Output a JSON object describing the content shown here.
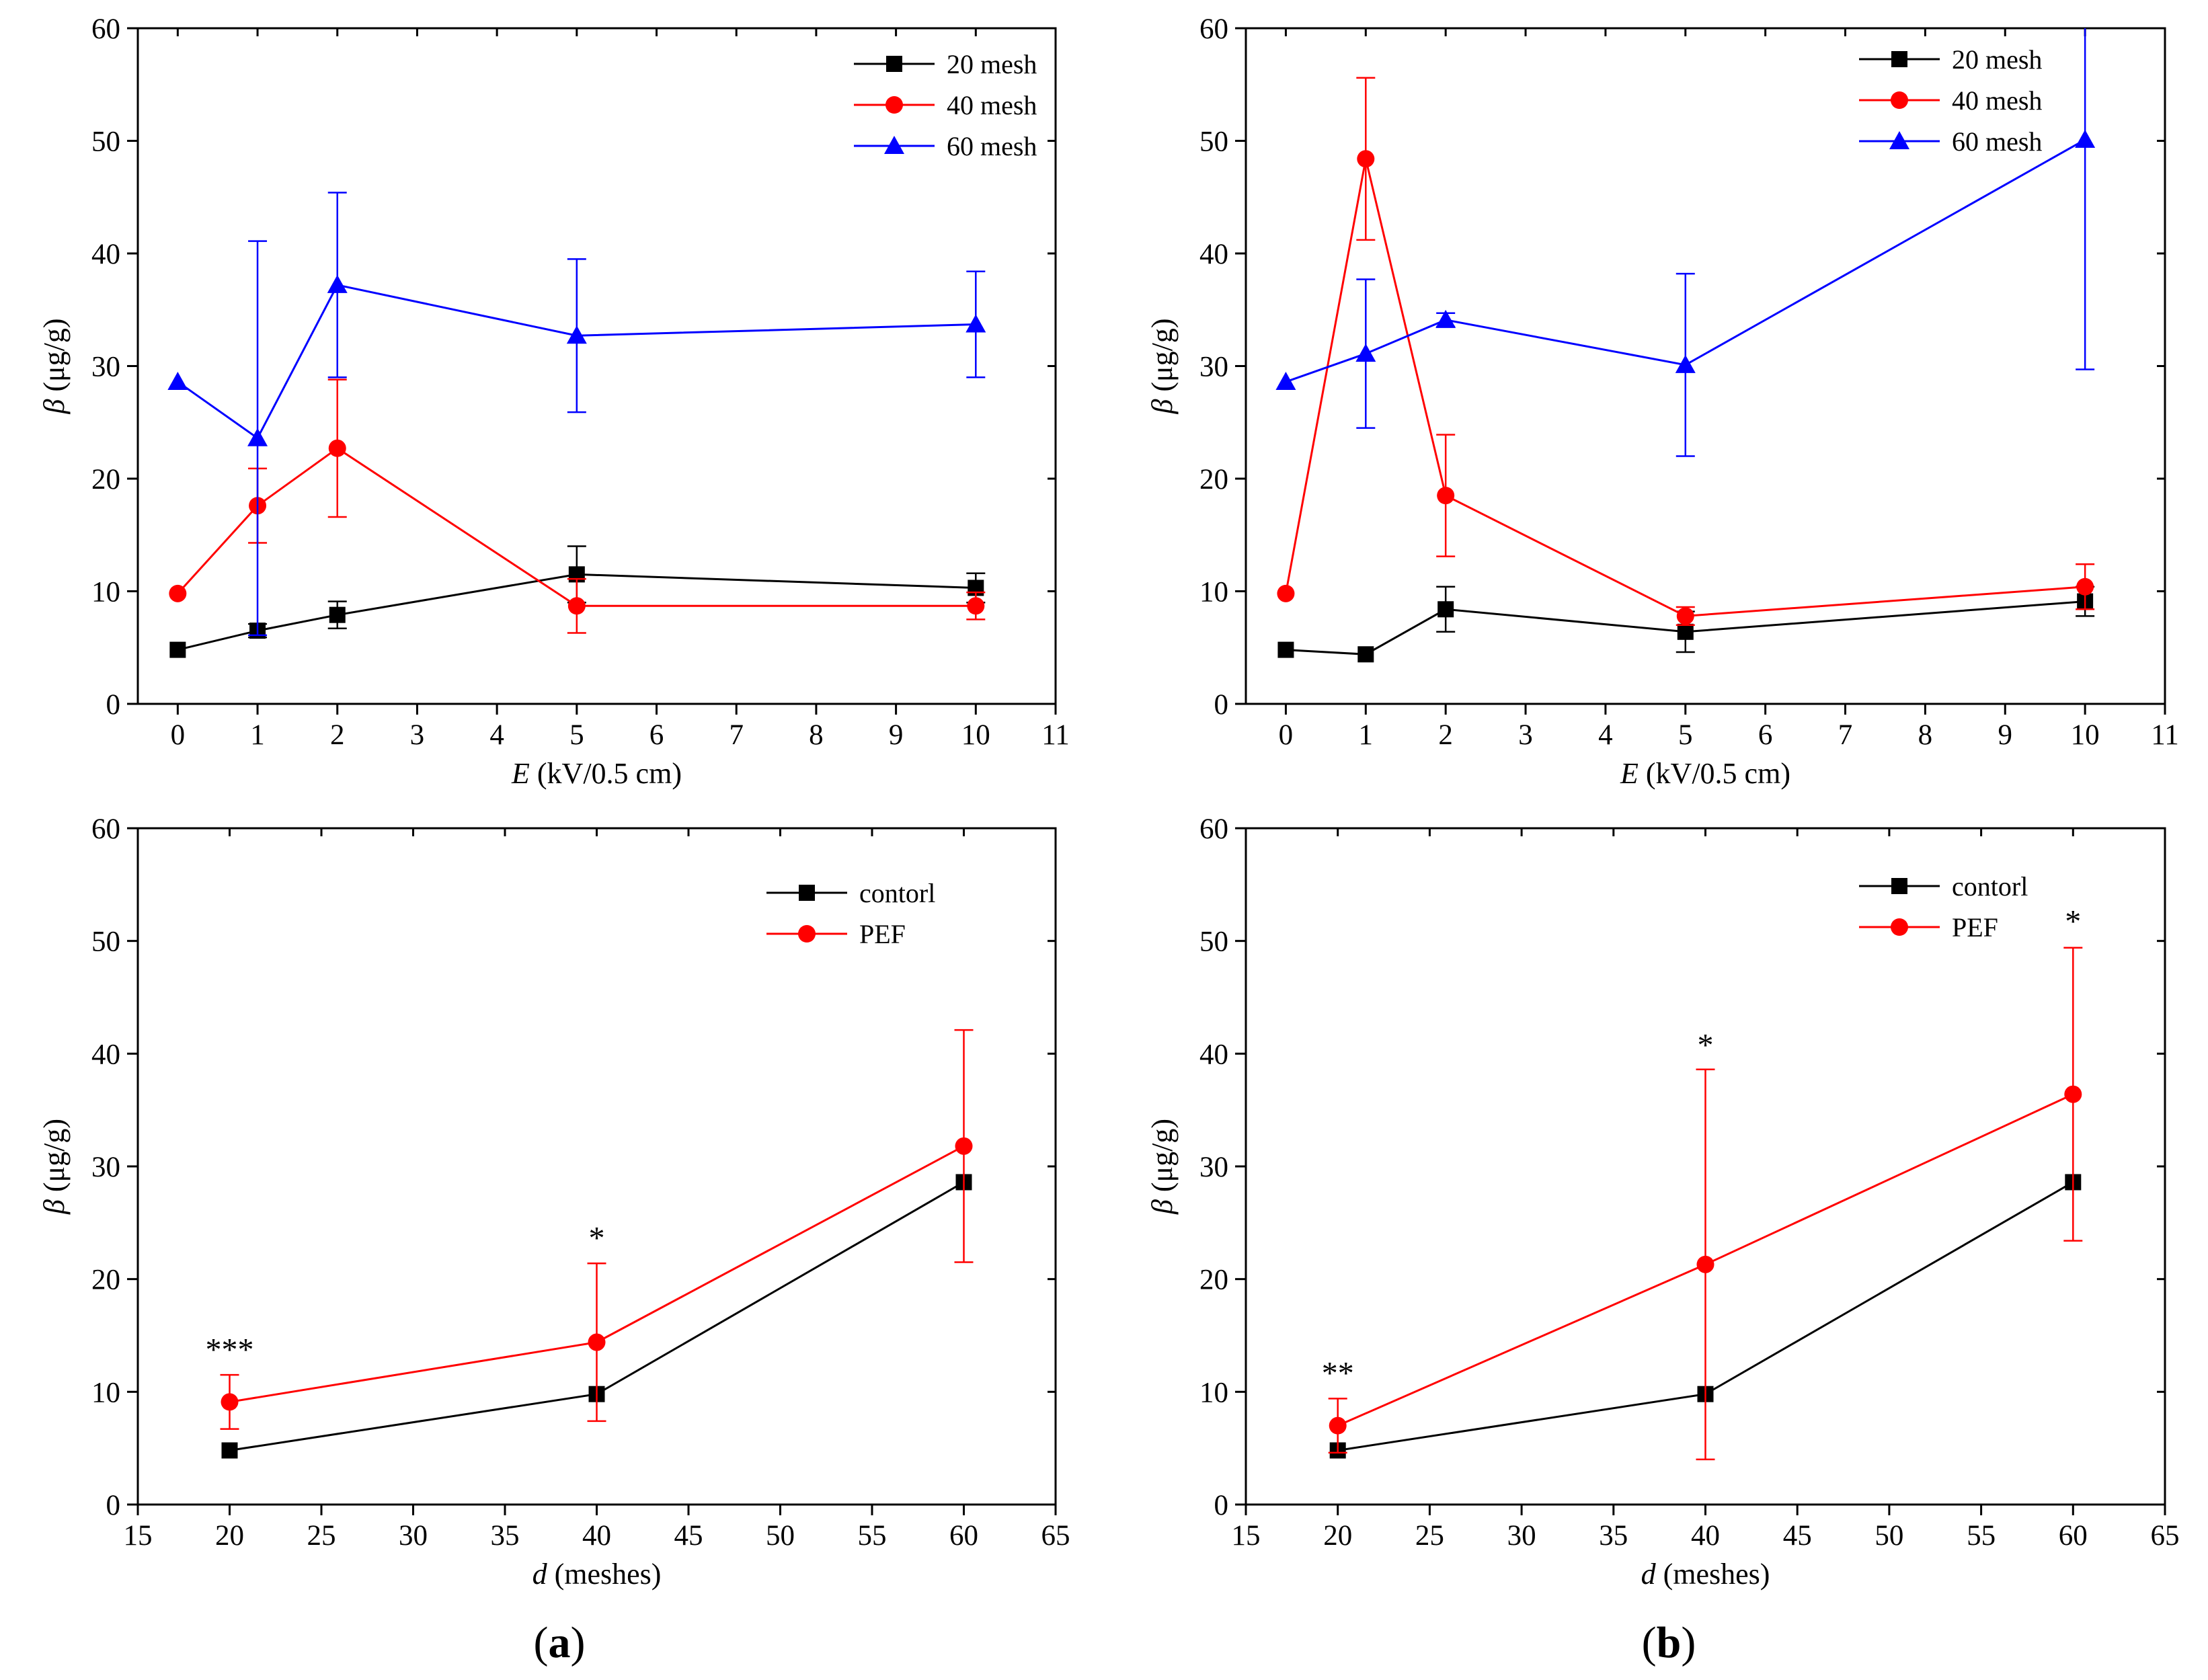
{
  "colors": {
    "black": "#000000",
    "red": "#ff0000",
    "blue": "#0000ff"
  },
  "panel_labels": {
    "a": "a",
    "b": "b",
    "open": "(",
    "close": ")"
  },
  "chart_data": [
    {
      "id": "a-top",
      "type": "line",
      "xlabel_var": "E",
      "xlabel_unit": " (kV/0.5 cm)",
      "ylabel_var": "β",
      "ylabel_unit": " (μg/g)",
      "xlim": [
        -0.5,
        11
      ],
      "ylim": [
        0,
        60
      ],
      "xticks": [
        0,
        1,
        2,
        3,
        4,
        5,
        6,
        7,
        8,
        9,
        10,
        11
      ],
      "yticks": [
        0,
        10,
        20,
        30,
        40,
        50,
        60
      ],
      "legend_position": "top-right",
      "series": [
        {
          "name": "20 mesh",
          "color": "#000000",
          "marker": "square",
          "x": [
            0,
            1,
            2,
            5,
            10
          ],
          "y": [
            4.8,
            6.5,
            7.9,
            11.5,
            10.3
          ],
          "err": [
            0,
            0.6,
            1.2,
            2.5,
            1.3
          ]
        },
        {
          "name": "40 mesh",
          "color": "#ff0000",
          "marker": "circle",
          "x": [
            0,
            1,
            2,
            5,
            10
          ],
          "y": [
            9.8,
            17.6,
            22.7,
            8.7,
            8.7
          ],
          "err": [
            0,
            3.3,
            6.1,
            2.4,
            1.2
          ]
        },
        {
          "name": "60 mesh",
          "color": "#0000ff",
          "marker": "triangle",
          "x": [
            0,
            1,
            2,
            5,
            10
          ],
          "y": [
            28.6,
            23.6,
            37.2,
            32.7,
            33.7
          ],
          "err": [
            0,
            17.5,
            8.2,
            6.8,
            4.7
          ]
        }
      ],
      "annotations": []
    },
    {
      "id": "b-top",
      "type": "line",
      "xlabel_var": "E",
      "xlabel_unit": " (kV/0.5 cm)",
      "ylabel_var": "β",
      "ylabel_unit": " (μg/g)",
      "xlim": [
        -0.5,
        11
      ],
      "ylim": [
        0,
        60
      ],
      "xticks": [
        0,
        1,
        2,
        3,
        4,
        5,
        6,
        7,
        8,
        9,
        10,
        11
      ],
      "yticks": [
        0,
        10,
        20,
        30,
        40,
        50,
        60
      ],
      "legend_position": "top-right",
      "series": [
        {
          "name": "20 mesh",
          "color": "#000000",
          "marker": "square",
          "x": [
            0,
            1,
            2,
            5,
            10
          ],
          "y": [
            4.8,
            4.4,
            8.4,
            6.4,
            9.1
          ],
          "err": [
            0,
            0,
            2.0,
            1.8,
            1.3
          ]
        },
        {
          "name": "40 mesh",
          "color": "#ff0000",
          "marker": "circle",
          "x": [
            0,
            1,
            2,
            5,
            10
          ],
          "y": [
            9.8,
            48.4,
            18.5,
            7.8,
            10.4
          ],
          "err": [
            0,
            7.2,
            5.4,
            0.8,
            2.0
          ]
        },
        {
          "name": "60 mesh",
          "color": "#0000ff",
          "marker": "triangle",
          "x": [
            0,
            1,
            2,
            5,
            10
          ],
          "y": [
            28.6,
            31.1,
            34.1,
            30.1,
            50.1
          ],
          "err": [
            0,
            6.6,
            0.6,
            8.1,
            20.4
          ]
        }
      ],
      "annotations": []
    },
    {
      "id": "a-bottom",
      "type": "line",
      "xlabel_var": "d",
      "xlabel_unit": " (meshes)",
      "ylabel_var": "β",
      "ylabel_unit": " (μg/g)",
      "xlim": [
        15,
        65
      ],
      "ylim": [
        0,
        60
      ],
      "xticks": [
        15,
        20,
        25,
        30,
        35,
        40,
        45,
        50,
        55,
        60,
        65
      ],
      "yticks": [
        0,
        10,
        20,
        30,
        40,
        50,
        60
      ],
      "legend_position": "top-right",
      "series": [
        {
          "name": "contorl",
          "color": "#000000",
          "marker": "square",
          "x": [
            20,
            40,
            60
          ],
          "y": [
            4.8,
            9.8,
            28.6
          ],
          "err": [
            0,
            0,
            0
          ]
        },
        {
          "name": "PEF",
          "color": "#ff0000",
          "marker": "circle",
          "x": [
            20,
            40,
            60
          ],
          "y": [
            9.1,
            14.4,
            31.8
          ],
          "err": [
            2.4,
            7.0,
            10.3
          ]
        }
      ],
      "annotations": [
        {
          "text": "***",
          "x": 20,
          "y": 12.8
        },
        {
          "text": "*",
          "x": 40,
          "y": 22.7
        }
      ]
    },
    {
      "id": "b-bottom",
      "type": "line",
      "xlabel_var": "d",
      "xlabel_unit": " (meshes)",
      "ylabel_var": "β",
      "ylabel_unit": " (μg/g)",
      "xlim": [
        15,
        65
      ],
      "ylim": [
        0,
        60
      ],
      "xticks": [
        15,
        20,
        25,
        30,
        35,
        40,
        45,
        50,
        55,
        60,
        65
      ],
      "yticks": [
        0,
        10,
        20,
        30,
        40,
        50,
        60
      ],
      "legend_position": "top-right",
      "series": [
        {
          "name": "contorl",
          "color": "#000000",
          "marker": "square",
          "x": [
            20,
            40,
            60
          ],
          "y": [
            4.8,
            9.8,
            28.6
          ],
          "err": [
            0,
            0,
            0
          ]
        },
        {
          "name": "PEF",
          "color": "#ff0000",
          "marker": "circle",
          "x": [
            20,
            40,
            60
          ],
          "y": [
            7.0,
            21.3,
            36.4
          ],
          "err": [
            2.4,
            17.3,
            13.0
          ]
        }
      ],
      "annotations": [
        {
          "text": "**",
          "x": 20,
          "y": 10.7
        },
        {
          "text": "*",
          "x": 40,
          "y": 39.8
        },
        {
          "text": "*",
          "x": 60,
          "y": 50.8
        }
      ]
    }
  ]
}
